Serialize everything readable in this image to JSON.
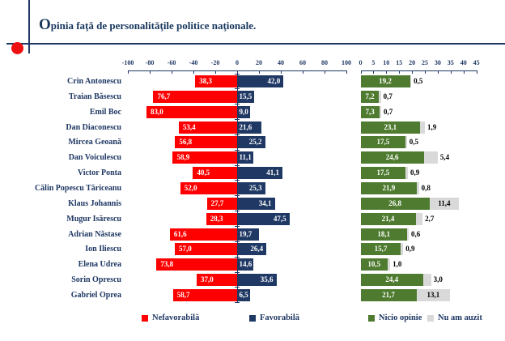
{
  "title": {
    "initial": "O",
    "rest": "pinia faţă de personalităţile politice naţionale."
  },
  "colors": {
    "navy": "#1F3864",
    "red": "#FE0000",
    "green": "#4E7B2F",
    "gray": "#D9D9D9",
    "title_text": "#17365D",
    "bullet_red": "#EE1111"
  },
  "chart_data": [
    {
      "type": "bar",
      "orientation": "horizontal-diverging",
      "title": "",
      "categories": [
        "Crin Antonescu",
        "Traian Băsescu",
        "Emil Boc",
        "Dan Diaconescu",
        "Mircea Geoană",
        "Dan Voiculescu",
        "Victor Ponta",
        "Călin Popescu Tăriceanu",
        "Klaus Johannis",
        "Mugur Isărescu",
        "Adrian Năstase",
        "Ion Iliescu",
        "Elena Udrea",
        "Sorin Oprescu",
        "Gabriel Oprea"
      ],
      "series": [
        {
          "name": "Nefavorabilă",
          "color": "#FE0000",
          "direction": "negative",
          "values": [
            38.3,
            76.7,
            83.0,
            53.4,
            56.8,
            58.9,
            40.5,
            52.0,
            27.7,
            28.3,
            61.6,
            57.0,
            73.8,
            37.0,
            58.7
          ]
        },
        {
          "name": "Favorabilă",
          "color": "#1F3864",
          "direction": "positive",
          "values": [
            42.0,
            15.5,
            9.0,
            21.6,
            25.2,
            11.1,
            41.1,
            25.3,
            34.1,
            47.5,
            19.7,
            26.4,
            14.6,
            35.6,
            6.5
          ]
        }
      ],
      "xlim": [
        -100,
        100
      ],
      "xticks": [
        -100,
        -80,
        -60,
        -40,
        -20,
        0,
        20,
        40,
        60,
        80,
        100
      ],
      "grid": false,
      "legend_position": "bottom",
      "value_label_decimal": ","
    },
    {
      "type": "bar",
      "orientation": "horizontal-stacked",
      "title": "",
      "categories": [
        "Crin Antonescu",
        "Traian Băsescu",
        "Emil Boc",
        "Dan Diaconescu",
        "Mircea Geoană",
        "Dan Voiculescu",
        "Victor Ponta",
        "Călin Popescu Tăriceanu",
        "Klaus Johannis",
        "Mugur Isărescu",
        "Adrian Năstase",
        "Ion Iliescu",
        "Elena Udrea",
        "Sorin Oprescu",
        "Gabriel Oprea"
      ],
      "series": [
        {
          "name": "Nicio opinie",
          "color": "#4E7B2F",
          "values": [
            19.2,
            7.2,
            7.3,
            23.1,
            17.5,
            24.6,
            17.5,
            21.9,
            26.8,
            21.4,
            18.1,
            15.7,
            10.5,
            24.4,
            21.7
          ]
        },
        {
          "name": "Nu am auzit",
          "color": "#D9D9D9",
          "values": [
            0.5,
            0.7,
            0.7,
            1.9,
            0.5,
            5.4,
            0.9,
            0.8,
            11.4,
            2.7,
            0.6,
            0.9,
            1.0,
            3.0,
            13.1
          ]
        }
      ],
      "xlim": [
        0,
        45
      ],
      "xticks": [
        0,
        5,
        10,
        15,
        20,
        25,
        30,
        35,
        40,
        45
      ],
      "grid": false,
      "legend_position": "bottom",
      "value_label_decimal": ","
    }
  ]
}
